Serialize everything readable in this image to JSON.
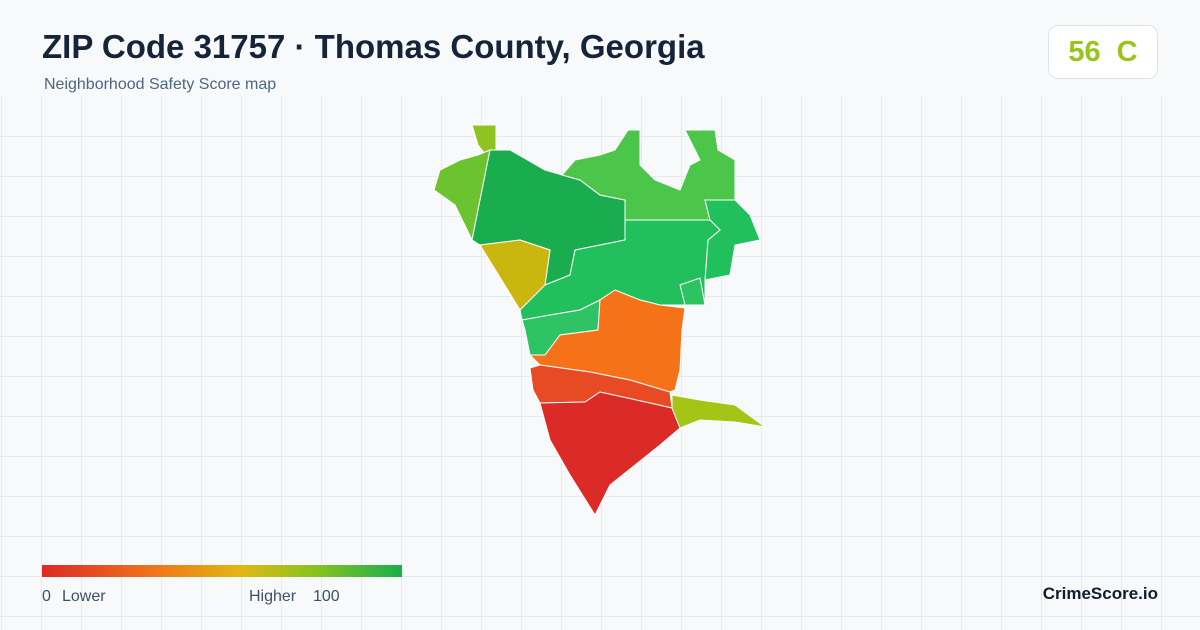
{
  "header": {
    "title": "ZIP Code 31757 · Thomas County, Georgia",
    "subtitle": "Neighborhood Safety Score map"
  },
  "score": {
    "value": "56",
    "grade": "C"
  },
  "legend": {
    "min": "0",
    "min_label": "Lower",
    "max_label": "Higher",
    "max": "100"
  },
  "brand": "CrimeScore.io"
}
